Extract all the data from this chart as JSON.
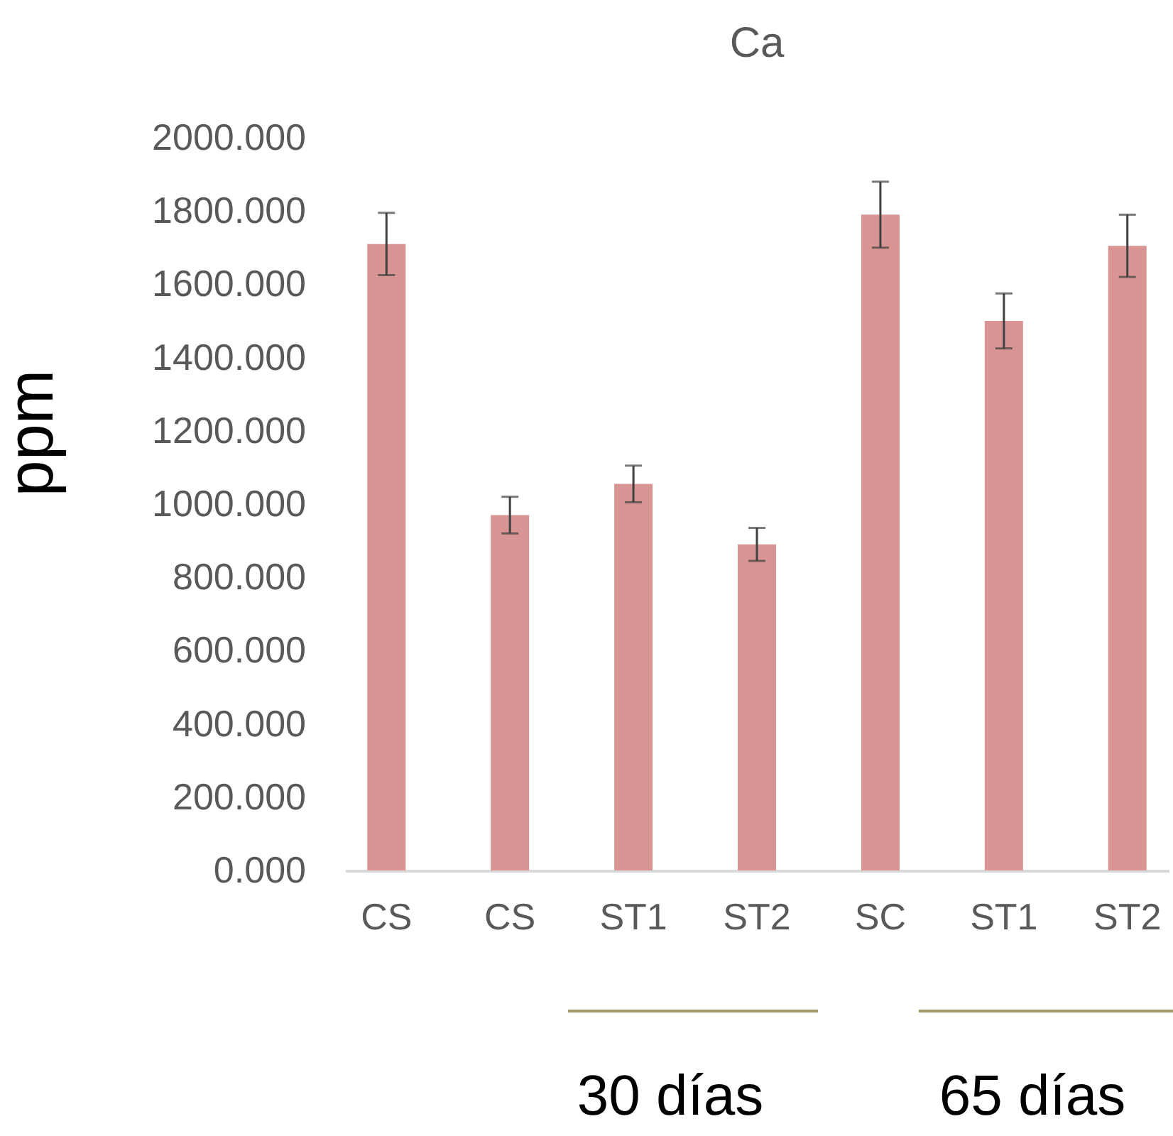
{
  "chart_data": {
    "type": "bar",
    "title": "Ca",
    "ylabel": "ppm",
    "categories": [
      "CS",
      "CS",
      "ST1",
      "ST2",
      "SC",
      "ST1",
      "ST2"
    ],
    "values": [
      1710,
      970,
      1055,
      890,
      1790,
      1500,
      1705
    ],
    "errors": [
      85,
      50,
      50,
      45,
      90,
      75,
      85
    ],
    "color": "#d99594",
    "ylim": [
      0,
      2000
    ],
    "yticks": [
      {
        "value": 0,
        "label": "0.000"
      },
      {
        "value": 200,
        "label": "200.000"
      },
      {
        "value": 400,
        "label": "400.000"
      },
      {
        "value": 600,
        "label": "600.000"
      },
      {
        "value": 800,
        "label": "800.000"
      },
      {
        "value": 1000,
        "label": "1000.000"
      },
      {
        "value": 1200,
        "label": "1200.000"
      },
      {
        "value": 1400,
        "label": "1400.000"
      },
      {
        "value": 1600,
        "label": "1600.000"
      },
      {
        "value": 1800,
        "label": "1800.000"
      },
      {
        "value": 2000,
        "label": "2000.000"
      }
    ],
    "annotations": [
      "30 días",
      "65 días"
    ],
    "grid": false
  }
}
